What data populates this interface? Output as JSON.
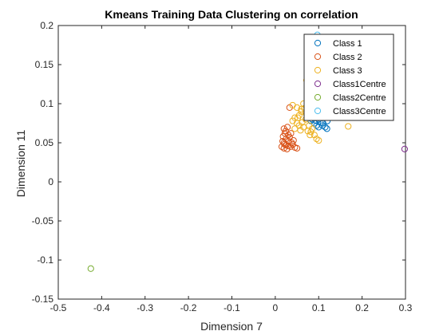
{
  "chart_data": {
    "type": "scatter",
    "title": "Kmeans Training Data Clustering on correlation",
    "xlabel": "Dimension 7",
    "ylabel": "Dimension 11",
    "xlim": [
      -0.5,
      0.3
    ],
    "ylim": [
      -0.15,
      0.2
    ],
    "xticks": [
      -0.5,
      -0.4,
      -0.3,
      -0.2,
      -0.1,
      0,
      0.1,
      0.2,
      0.3
    ],
    "xtick_labels": [
      "-0.5",
      "-0.4",
      "-0.3",
      "-0.2",
      "-0.1",
      "0",
      "0.1",
      "0.2",
      "0.3"
    ],
    "yticks": [
      -0.15,
      -0.1,
      -0.05,
      0,
      0.05,
      0.1,
      0.15,
      0.2
    ],
    "ytick_labels": [
      "-0.15",
      "-0.1",
      "-0.05",
      "0",
      "0.05",
      "0.1",
      "0.15",
      "0.2"
    ],
    "grid": false,
    "legend_position": "top-right",
    "series": [
      {
        "name": "Class 1",
        "color": "#0072bd",
        "points": [
          [
            0.08,
            0.085
          ],
          [
            0.085,
            0.08
          ],
          [
            0.09,
            0.082
          ],
          [
            0.095,
            0.078
          ],
          [
            0.1,
            0.08
          ],
          [
            0.105,
            0.085
          ],
          [
            0.11,
            0.075
          ],
          [
            0.115,
            0.07
          ],
          [
            0.12,
            0.078
          ],
          [
            0.1,
            0.07
          ],
          [
            0.095,
            0.072
          ],
          [
            0.09,
            0.075
          ],
          [
            0.085,
            0.088
          ],
          [
            0.092,
            0.09
          ],
          [
            0.1,
            0.092
          ],
          [
            0.105,
            0.088
          ],
          [
            0.098,
            0.095
          ],
          [
            0.088,
            0.096
          ],
          [
            0.113,
            0.082
          ],
          [
            0.119,
            0.068
          ],
          [
            0.082,
            0.078
          ],
          [
            0.096,
            0.085
          ],
          [
            0.104,
            0.076
          ],
          [
            0.109,
            0.072
          ],
          [
            0.078,
            0.082
          ]
        ]
      },
      {
        "name": "Class 2",
        "color": "#d95319",
        "points": [
          [
            0.015,
            0.045
          ],
          [
            0.02,
            0.05
          ],
          [
            0.025,
            0.055
          ],
          [
            0.03,
            0.06
          ],
          [
            0.02,
            0.043
          ],
          [
            0.025,
            0.047
          ],
          [
            0.03,
            0.052
          ],
          [
            0.035,
            0.045
          ],
          [
            0.04,
            0.048
          ],
          [
            0.045,
            0.044
          ],
          [
            0.02,
            0.068
          ],
          [
            0.028,
            0.07
          ],
          [
            0.018,
            0.058
          ],
          [
            0.022,
            0.062
          ],
          [
            0.033,
            0.057
          ],
          [
            0.038,
            0.05
          ],
          [
            0.05,
            0.043
          ],
          [
            0.027,
            0.042
          ],
          [
            0.033,
            0.095
          ],
          [
            0.024,
            0.065
          ],
          [
            0.03,
            0.046
          ],
          [
            0.017,
            0.052
          ],
          [
            0.036,
            0.062
          ],
          [
            0.042,
            0.053
          ],
          [
            0.021,
            0.048
          ]
        ]
      },
      {
        "name": "Class 3",
        "color": "#edb120",
        "points": [
          [
            0.04,
            0.078
          ],
          [
            0.045,
            0.082
          ],
          [
            0.05,
            0.075
          ],
          [
            0.055,
            0.085
          ],
          [
            0.06,
            0.09
          ],
          [
            0.065,
            0.07
          ],
          [
            0.07,
            0.08
          ],
          [
            0.075,
            0.065
          ],
          [
            0.08,
            0.06
          ],
          [
            0.085,
            0.068
          ],
          [
            0.05,
            0.095
          ],
          [
            0.06,
            0.093
          ],
          [
            0.07,
            0.088
          ],
          [
            0.055,
            0.072
          ],
          [
            0.045,
            0.068
          ],
          [
            0.09,
            0.06
          ],
          [
            0.095,
            0.055
          ],
          [
            0.1,
            0.053
          ],
          [
            0.065,
            0.1
          ],
          [
            0.168,
            0.071
          ],
          [
            0.072,
            0.13
          ],
          [
            0.082,
            0.064
          ],
          [
            0.052,
            0.082
          ],
          [
            0.062,
            0.076
          ],
          [
            0.04,
            0.098
          ],
          [
            0.078,
            0.072
          ],
          [
            0.058,
            0.066
          ],
          [
            0.067,
            0.094
          ]
        ]
      },
      {
        "name": "Class1Centre",
        "color": "#7e2f8e",
        "points": [
          [
            0.298,
            0.042
          ]
        ]
      },
      {
        "name": "Class2Centre",
        "color": "#77ac30",
        "points": [
          [
            -0.425,
            -0.111
          ]
        ]
      },
      {
        "name": "Class3Centre",
        "color": "#4dbeee",
        "points": [
          [
            0.097,
            0.188
          ]
        ]
      }
    ]
  }
}
